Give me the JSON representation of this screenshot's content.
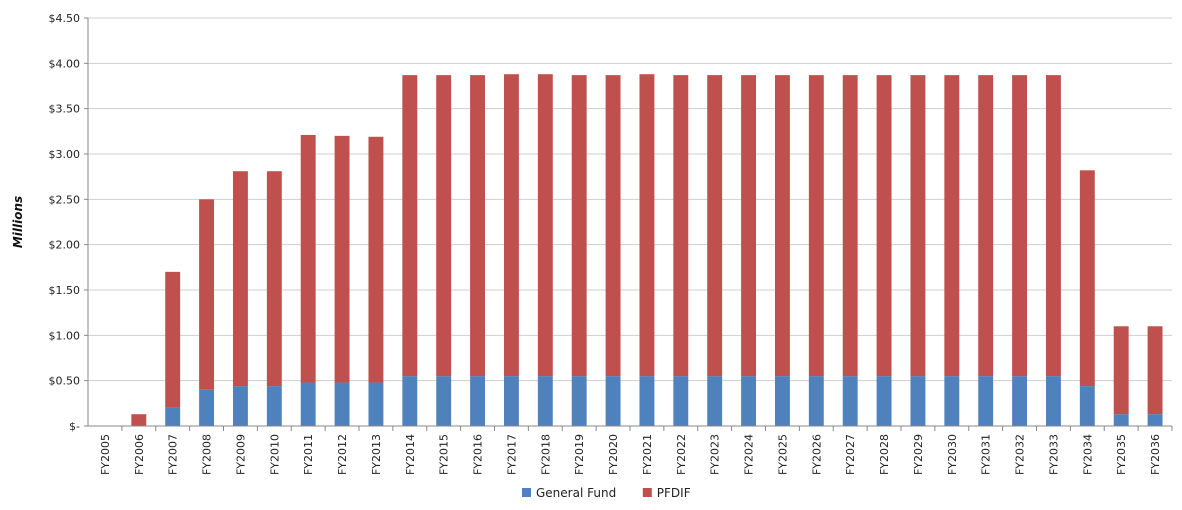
{
  "chart_data": {
    "type": "bar",
    "stacked": true,
    "title": "",
    "ylabel": "Millions",
    "xlabel": "",
    "ylim": [
      0,
      4.5
    ],
    "yticks": [
      0,
      0.5,
      1.0,
      1.5,
      2.0,
      2.5,
      3.0,
      3.5,
      4.0,
      4.5
    ],
    "ytick_labels": [
      "$-",
      "$0.50",
      "$1.00",
      "$1.50",
      "$2.00",
      "$2.50",
      "$3.00",
      "$3.50",
      "$4.00",
      "$4.50"
    ],
    "grid": "horizontal",
    "legend_position": "bottom",
    "categories": [
      "FY2005",
      "FY2006",
      "FY2007",
      "FY2008",
      "FY2009",
      "FY2010",
      "FY2011",
      "FY2012",
      "FY2013",
      "FY2014",
      "FY2015",
      "FY2016",
      "FY2017",
      "FY2018",
      "FY2019",
      "FY2020",
      "FY2021",
      "FY2022",
      "FY2023",
      "FY2024",
      "FY2025",
      "FY2026",
      "FY2027",
      "FY2028",
      "FY2029",
      "FY2030",
      "FY2031",
      "FY2032",
      "FY2033",
      "FY2034",
      "FY2035",
      "FY2036"
    ],
    "series": [
      {
        "name": "General Fund",
        "color": "#4f81bd",
        "values": [
          0,
          0,
          0.2,
          0.4,
          0.44,
          0.44,
          0.48,
          0.48,
          0.48,
          0.55,
          0.55,
          0.55,
          0.55,
          0.55,
          0.55,
          0.55,
          0.55,
          0.55,
          0.55,
          0.55,
          0.55,
          0.55,
          0.55,
          0.55,
          0.55,
          0.55,
          0.55,
          0.55,
          0.55,
          0.44,
          0.13,
          0.13
        ]
      },
      {
        "name": "PFDIF",
        "color": "#c0504d",
        "values": [
          0,
          0.13,
          1.5,
          2.1,
          2.37,
          2.37,
          2.73,
          2.72,
          2.71,
          3.32,
          3.32,
          3.32,
          3.33,
          3.33,
          3.32,
          3.32,
          3.33,
          3.32,
          3.32,
          3.32,
          3.32,
          3.32,
          3.32,
          3.32,
          3.32,
          3.32,
          3.32,
          3.32,
          3.32,
          2.38,
          0.97,
          0.97
        ]
      }
    ]
  }
}
